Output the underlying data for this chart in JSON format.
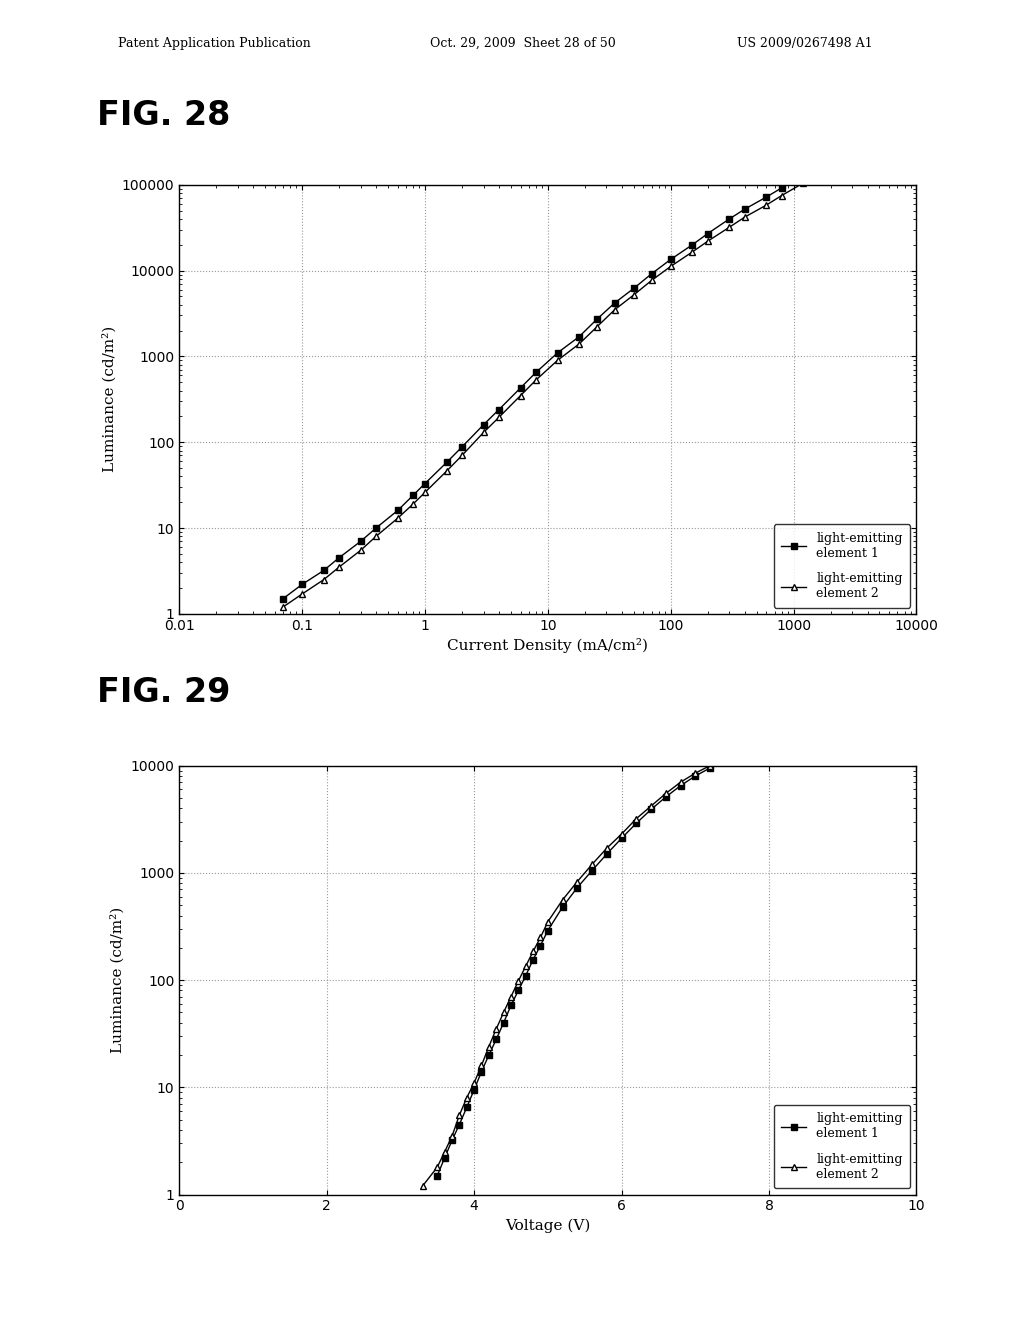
{
  "fig28": {
    "title": "FIG. 28",
    "xlabel": "Current Density (mA/cm²)",
    "ylabel": "Luminance (cd/m²)",
    "xlim": [
      0.01,
      10000
    ],
    "ylim": [
      1,
      100000
    ],
    "series1_label": "light-emitting\nelement 1",
    "series2_label": "light-emitting\nelement 2",
    "series1_x": [
      0.07,
      0.1,
      0.15,
      0.2,
      0.3,
      0.4,
      0.6,
      0.8,
      1.0,
      1.5,
      2.0,
      3.0,
      4.0,
      6.0,
      8.0,
      12,
      18,
      25,
      35,
      50,
      70,
      100,
      150,
      200,
      300,
      400,
      600,
      800,
      1200,
      1600
    ],
    "series1_y": [
      1.5,
      2.2,
      3.2,
      4.5,
      7.0,
      10,
      16,
      24,
      33,
      58,
      88,
      160,
      240,
      430,
      650,
      1100,
      1700,
      2700,
      4200,
      6200,
      9200,
      13500,
      20000,
      27000,
      40000,
      52000,
      72000,
      92000,
      130000,
      165000
    ],
    "series2_x": [
      0.07,
      0.1,
      0.15,
      0.2,
      0.3,
      0.4,
      0.6,
      0.8,
      1.0,
      1.5,
      2.0,
      3.0,
      4.0,
      6.0,
      8.0,
      12,
      18,
      25,
      35,
      50,
      70,
      100,
      150,
      200,
      300,
      400,
      600,
      800,
      1200,
      1600
    ],
    "series2_y": [
      1.2,
      1.7,
      2.5,
      3.5,
      5.5,
      8.0,
      13,
      19,
      26,
      46,
      70,
      130,
      195,
      350,
      530,
      900,
      1400,
      2200,
      3500,
      5200,
      7700,
      11200,
      16500,
      22000,
      32000,
      42000,
      58000,
      75000,
      105000,
      135000
    ]
  },
  "fig29": {
    "title": "FIG. 29",
    "xlabel": "Voltage (V)",
    "ylabel": "Luminance (cd/m²)",
    "xlim": [
      0,
      10
    ],
    "ylim": [
      1,
      10000
    ],
    "xticks": [
      0,
      2,
      4,
      6,
      8,
      10
    ],
    "series1_label": "light-emitting\nelement 1",
    "series2_label": "light-emitting\nelement 2",
    "series1_x": [
      3.5,
      3.6,
      3.7,
      3.8,
      3.9,
      4.0,
      4.1,
      4.2,
      4.3,
      4.4,
      4.5,
      4.6,
      4.7,
      4.8,
      4.9,
      5.0,
      5.2,
      5.4,
      5.6,
      5.8,
      6.0,
      6.2,
      6.4,
      6.6,
      6.8,
      7.0,
      7.2,
      7.4,
      7.6,
      7.8,
      8.0,
      8.2,
      8.4,
      8.5
    ],
    "series1_y": [
      1.5,
      2.2,
      3.2,
      4.5,
      6.5,
      9.5,
      14,
      20,
      28,
      40,
      58,
      80,
      110,
      155,
      210,
      290,
      480,
      730,
      1050,
      1500,
      2100,
      2900,
      3900,
      5100,
      6500,
      8000,
      9500,
      11000,
      13000,
      15500,
      18000,
      21000,
      24000,
      26000
    ],
    "series2_x": [
      3.3,
      3.5,
      3.6,
      3.7,
      3.8,
      3.9,
      4.0,
      4.1,
      4.2,
      4.3,
      4.4,
      4.5,
      4.6,
      4.7,
      4.8,
      4.9,
      5.0,
      5.2,
      5.4,
      5.6,
      5.8,
      6.0,
      6.2,
      6.4,
      6.6,
      6.8,
      7.0,
      7.2,
      7.4,
      7.6,
      7.8,
      8.0,
      8.2,
      8.4,
      8.5
    ],
    "series2_y": [
      1.2,
      1.8,
      2.5,
      3.5,
      5.5,
      8.0,
      11,
      16,
      24,
      35,
      50,
      70,
      98,
      135,
      185,
      250,
      350,
      560,
      830,
      1200,
      1700,
      2300,
      3200,
      4200,
      5500,
      7000,
      8500,
      10000,
      12000,
      14000,
      17000,
      20000,
      23000,
      26000,
      28000
    ]
  },
  "header_line1": "Patent Application Publication",
  "header_line2": "Oct. 29, 2009  Sheet 28 of 50",
  "header_line3": "US 2009/0267498 A1",
  "bg_color": "#ffffff",
  "line_color": "#000000",
  "grid_color": "#999999"
}
